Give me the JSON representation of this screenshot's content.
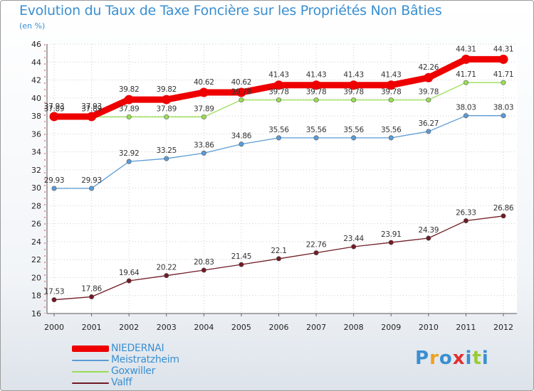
{
  "header": {
    "title": "Evolution du Taux de Taxe Foncière sur les Propriétés Non Bâties",
    "unit": "(en %)"
  },
  "logo": {
    "text": "Proxiti"
  },
  "colors": {
    "series": [
      "#ee0000",
      "#5b9bd5",
      "#99dd55",
      "#701b25"
    ],
    "title": "#3a8fd0"
  },
  "chart_data": {
    "type": "line",
    "title": "Evolution du Taux de Taxe Foncière sur les Propriétés Non Bâties",
    "ylabel": "(en %)",
    "x": [
      "2000",
      "2001",
      "2002",
      "2003",
      "2004",
      "2005",
      "2006",
      "2007",
      "2008",
      "2009",
      "2010",
      "2011",
      "2012"
    ],
    "ylim": [
      16,
      46
    ],
    "yticks": [
      16,
      18,
      20,
      22,
      24,
      26,
      28,
      30,
      32,
      34,
      36,
      38,
      40,
      42,
      44,
      46
    ],
    "grid": true,
    "legend_position": "bottom-left",
    "series": [
      {
        "name": "NIEDERNAI",
        "values": [
          37.93,
          37.93,
          39.82,
          39.82,
          40.62,
          40.62,
          41.43,
          41.43,
          41.43,
          41.43,
          42.26,
          44.31,
          44.31
        ]
      },
      {
        "name": "Meistratzheim",
        "values": [
          29.93,
          29.93,
          32.92,
          33.25,
          33.86,
          34.86,
          35.56,
          35.56,
          35.56,
          35.56,
          36.27,
          38.03,
          38.03
        ]
      },
      {
        "name": "Goxwiller",
        "values": [
          37.89,
          37.89,
          37.89,
          37.89,
          37.89,
          39.78,
          39.78,
          39.78,
          39.78,
          39.78,
          39.78,
          41.71,
          41.71
        ]
      },
      {
        "name": "Valff",
        "values": [
          17.53,
          17.86,
          19.64,
          20.22,
          20.83,
          21.45,
          22.1,
          22.76,
          23.44,
          23.91,
          24.39,
          26.33,
          26.86
        ]
      }
    ]
  }
}
